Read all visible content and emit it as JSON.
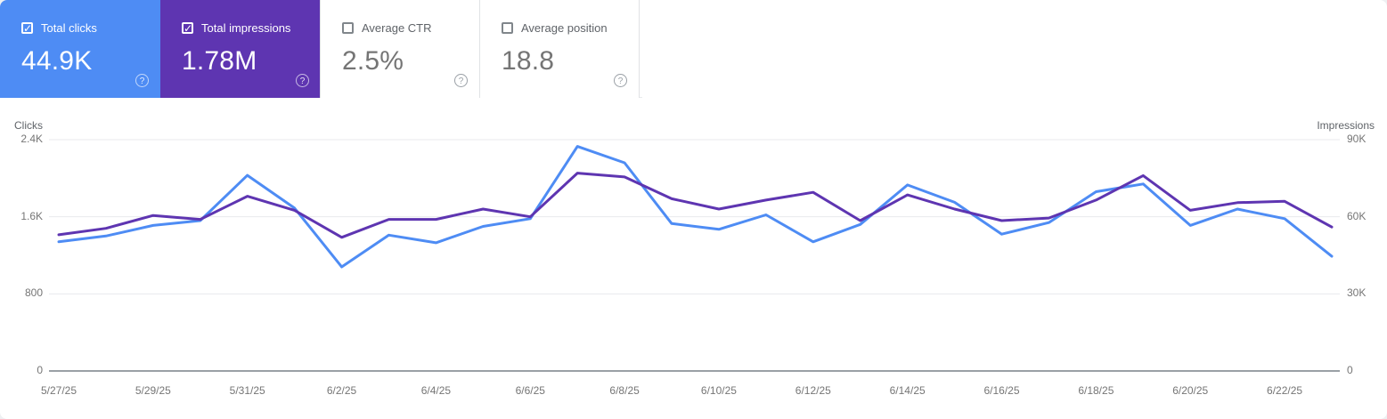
{
  "cards": [
    {
      "id": "total-clicks",
      "label": "Total clicks",
      "value": "44.9K",
      "checked": true,
      "color": "#4e8cf4"
    },
    {
      "id": "total-impressions",
      "label": "Total impressions",
      "value": "1.78M",
      "checked": true,
      "color": "#5e35b1"
    },
    {
      "id": "average-ctr",
      "label": "Average CTR",
      "value": "2.5%",
      "checked": false,
      "color": null
    },
    {
      "id": "average-position",
      "label": "Average position",
      "value": "18.8",
      "checked": false,
      "color": null
    }
  ],
  "help_glyph": "?",
  "chart_data": {
    "type": "line",
    "x": [
      "5/27/25",
      "5/28/25",
      "5/29/25",
      "5/30/25",
      "5/31/25",
      "6/1/25",
      "6/2/25",
      "6/3/25",
      "6/4/25",
      "6/5/25",
      "6/6/25",
      "6/7/25",
      "6/8/25",
      "6/9/25",
      "6/10/25",
      "6/11/25",
      "6/12/25",
      "6/13/25",
      "6/14/25",
      "6/15/25",
      "6/16/25",
      "6/17/25",
      "6/18/25",
      "6/19/25",
      "6/20/25",
      "6/21/25",
      "6/22/25",
      "6/23/25"
    ],
    "x_tick_labels": [
      "5/27/25",
      "5/29/25",
      "5/31/25",
      "6/2/25",
      "6/4/25",
      "6/6/25",
      "6/8/25",
      "6/10/25",
      "6/12/25",
      "6/14/25",
      "6/16/25",
      "6/18/25",
      "6/20/25",
      "6/22/25"
    ],
    "x_label_every": 2,
    "left_axis": {
      "title": "Clicks",
      "tick_labels": [
        "2.4K",
        "1.6K",
        "800",
        "0"
      ],
      "tick_values": [
        2400,
        1600,
        800,
        0
      ],
      "max": 2400
    },
    "right_axis": {
      "title": "Impressions",
      "tick_labels": [
        "90K",
        "60K",
        "30K",
        "0"
      ],
      "tick_values": [
        90000,
        60000,
        30000,
        0
      ],
      "max": 90000
    },
    "series": [
      {
        "name": "Clicks",
        "axis": "left",
        "color": "#4e8cf4",
        "values": [
          1340,
          1400,
          1510,
          1560,
          2030,
          1690,
          1080,
          1410,
          1330,
          1500,
          1580,
          2330,
          2160,
          1530,
          1470,
          1620,
          1340,
          1520,
          1930,
          1750,
          1420,
          1540,
          1860,
          1940,
          1510,
          1680,
          1580,
          1190
        ]
      },
      {
        "name": "Impressions",
        "axis": "right",
        "color": "#5e35b1",
        "values": [
          53000,
          55500,
          60500,
          59000,
          68000,
          62500,
          52000,
          59000,
          59000,
          63000,
          60000,
          77000,
          75500,
          67000,
          63000,
          66500,
          69500,
          58500,
          68500,
          63000,
          58500,
          59500,
          66500,
          76000,
          62500,
          65500,
          66000,
          56000
        ]
      }
    ],
    "grid": true,
    "legend_position": "none",
    "grid_color": "#e8eaed",
    "baseline_color": "#9aa0a6"
  }
}
